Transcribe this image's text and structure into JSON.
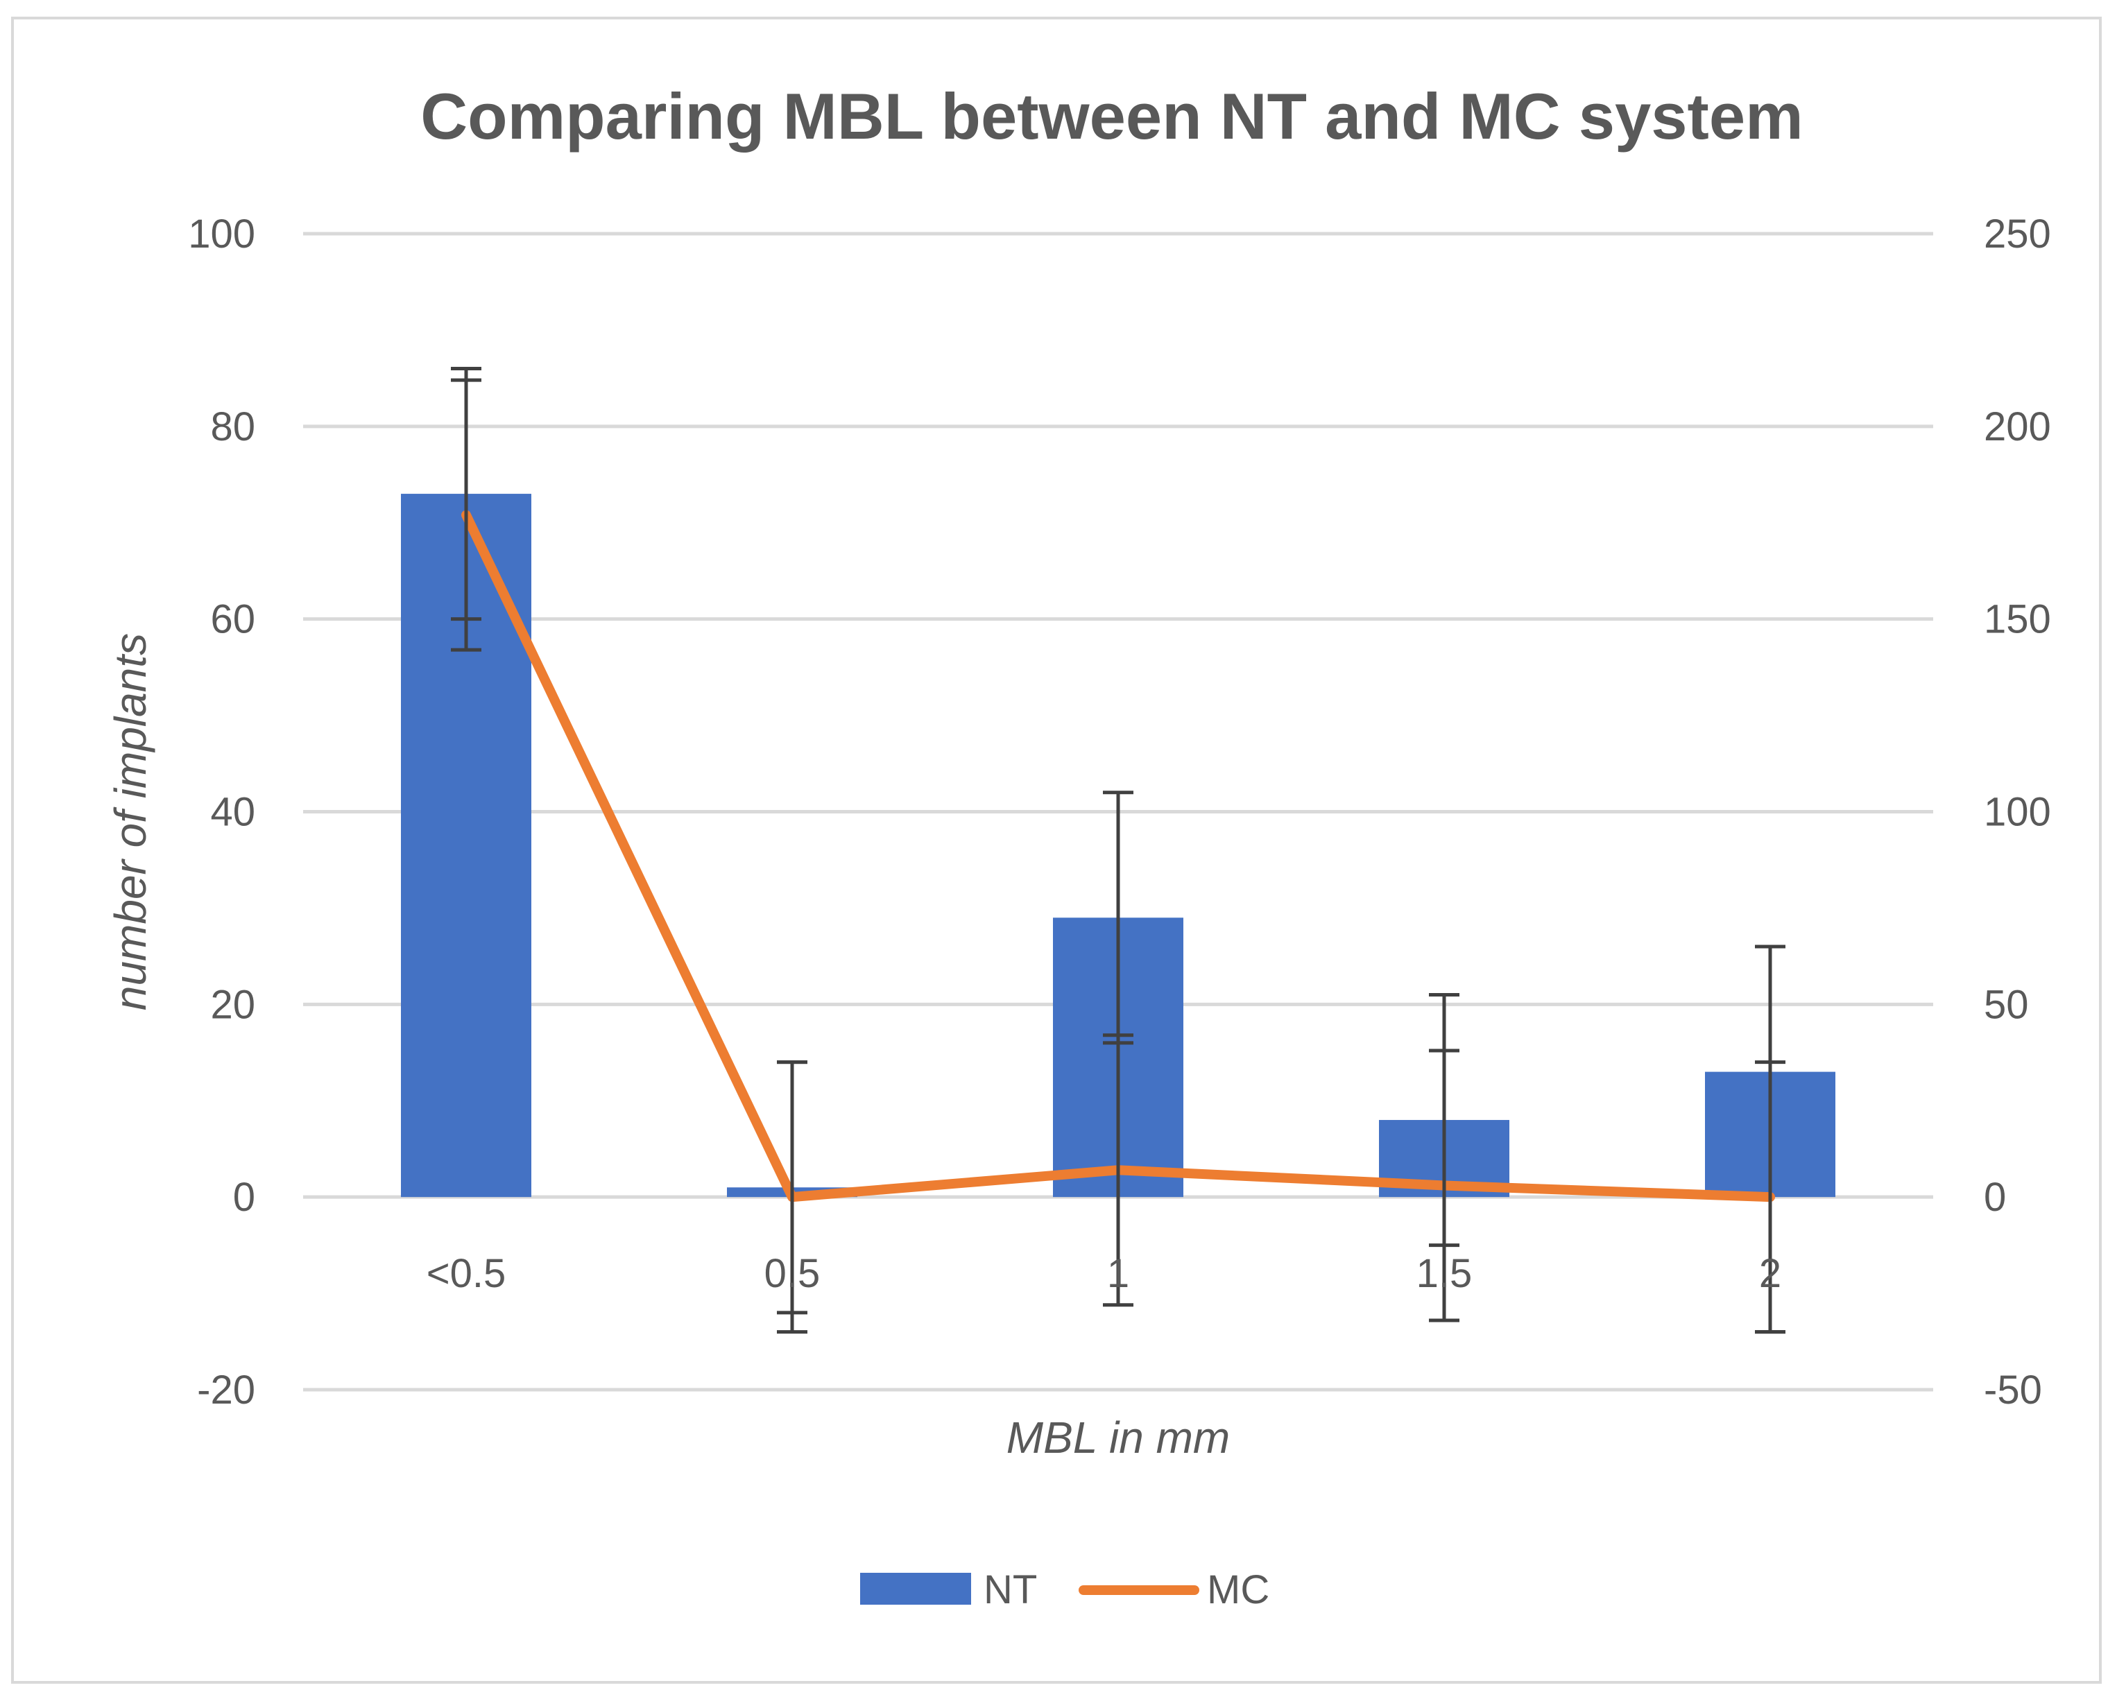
{
  "chart_data": {
    "type": "bar",
    "title": "Comparing MBL between NT and MC system",
    "xlabel": "MBL in mm",
    "ylabel": "number of implants",
    "categories": [
      "<0.5",
      "0.5",
      "1",
      "1.5",
      "2"
    ],
    "ylim": [
      -20,
      100
    ],
    "yticks": [
      "-20",
      "0",
      "20",
      "40",
      "60",
      "80",
      "100"
    ],
    "y2lim": [
      -50,
      250
    ],
    "y2ticks": [
      "-50",
      "0",
      "50",
      "100",
      "150",
      "200",
      "250"
    ],
    "grid": true,
    "legend_position": "bottom",
    "series": [
      {
        "name": "NT",
        "type": "bar",
        "axis": "left",
        "color": "#4472C4",
        "values": [
          73,
          1,
          29,
          8,
          13
        ],
        "error_low": [
          60,
          -12,
          16,
          -5,
          -14
        ],
        "error_high": [
          86,
          14,
          42,
          21,
          26
        ]
      },
      {
        "name": "MC",
        "type": "line",
        "axis": "right",
        "color": "#ED7D31",
        "values": [
          177,
          0,
          7,
          3,
          0
        ],
        "error_low": [
          142,
          -35,
          -28,
          -32,
          -35
        ],
        "error_high": [
          212,
          35,
          42,
          38,
          35
        ]
      }
    ]
  }
}
